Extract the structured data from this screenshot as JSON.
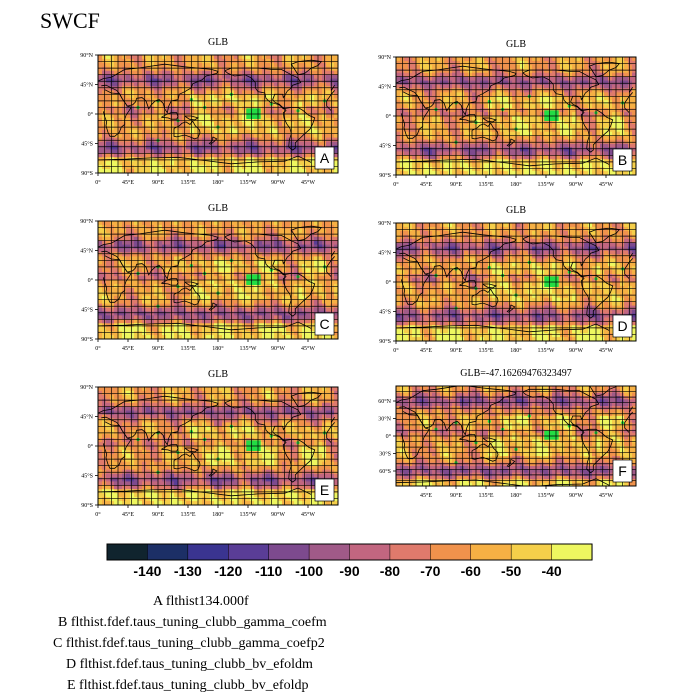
{
  "figure": {
    "title": "SWCF",
    "panels": [
      {
        "title": "GLB",
        "letter": "A",
        "proj": "full"
      },
      {
        "title": "GLB",
        "letter": "B",
        "proj": "full"
      },
      {
        "title": "GLB",
        "letter": "C",
        "proj": "full"
      },
      {
        "title": "GLB",
        "letter": "D",
        "proj": "full"
      },
      {
        "title": "GLB",
        "letter": "E",
        "proj": "full"
      },
      {
        "title": "GLB=-47.16269476323497",
        "letter": "F",
        "proj": "sub"
      }
    ],
    "legend_lines": [
      "A  flthist134.000f",
      "B  flthist.fdef.taus_tuning_clubb_gamma_coefm",
      "C  flthist.fdef.taus_tuning_clubb_gamma_coefp2",
      "D  flthist.fdef.taus_tuning_clubb_bv_efoldm",
      "E  flthist.fdef.taus_tuning_clubb_bv_efoldp"
    ]
  },
  "chart_data": {
    "type": "heatmap",
    "title": "SWCF",
    "variable": "SWCF",
    "map_type": "global lat-lon map",
    "grid": true,
    "full_lon_ticks": [
      "0°",
      "45°E",
      "90°E",
      "135°E",
      "180°",
      "135°W",
      "90°W",
      "45°W"
    ],
    "full_lat_ticks": [
      "90°N",
      "45°N",
      "0°",
      "45°S",
      "90°S"
    ],
    "sub_lon_ticks": [
      "45°E",
      "90°E",
      "135°E",
      "180°",
      "135°W",
      "90°W",
      "45°W"
    ],
    "sub_lat_ticks": [
      "60°N",
      "30°N",
      "0°",
      "30°S",
      "60°S"
    ],
    "colorbar": {
      "labels": [
        "-140",
        "-130",
        "-120",
        "-110",
        "-100",
        "-90",
        "-80",
        "-70",
        "-60",
        "-50",
        "-40"
      ],
      "colors": [
        "#10242e",
        "#1c2f66",
        "#3a3490",
        "#5a3d96",
        "#7d4a8e",
        "#a05a88",
        "#c26680",
        "#df7a6c",
        "#f0924c",
        "#f6b044",
        "#f5cf4a",
        "#eef760"
      ]
    },
    "global_mean": -47.16269476323497
  }
}
